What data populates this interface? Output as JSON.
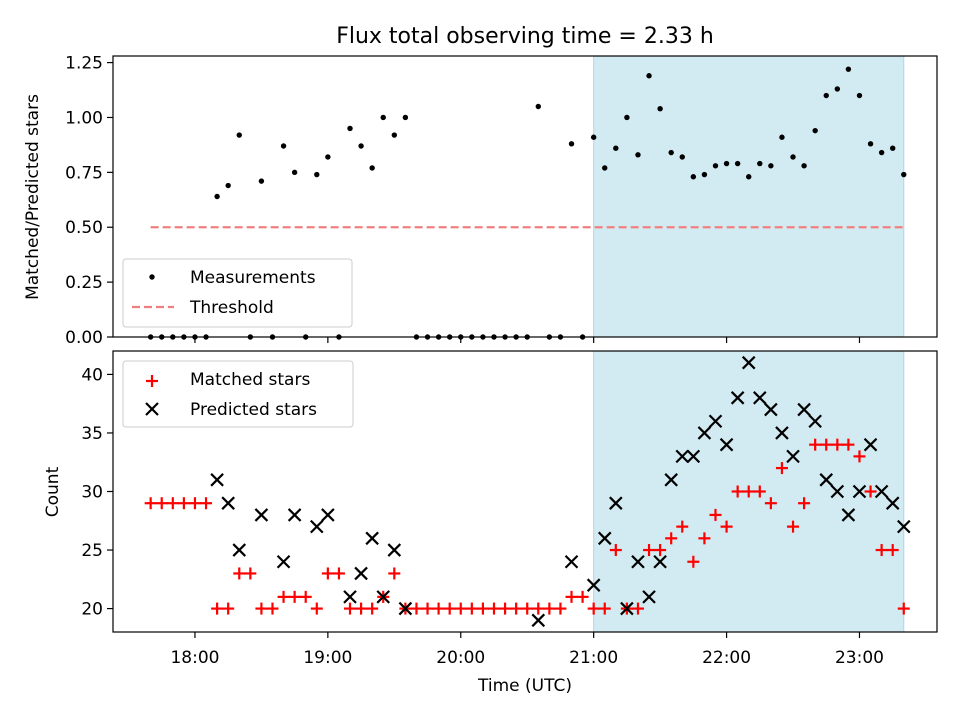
{
  "chart_data": [
    {
      "type": "scatter",
      "title": "Flux total observing time = 2.33 h",
      "xlabel": "",
      "ylabel": "Matched/Predicted stars",
      "ylim": [
        0,
        1.28
      ],
      "yticks": [
        "0.00",
        "0.25",
        "0.50",
        "0.75",
        "1.00",
        "1.25"
      ],
      "shaded_region": {
        "start": "21:00",
        "end": "23:20",
        "color": "#add8e6"
      },
      "legend_position": "lower-left",
      "legend": [
        {
          "label": "Measurements",
          "marker": "dot",
          "color": "#000000"
        },
        {
          "label": "Threshold",
          "marker": "dashed-line",
          "color": "#f08080"
        }
      ],
      "threshold": {
        "y": 0.5,
        "x": [
          "17:40",
          "23:20"
        ]
      },
      "series": [
        {
          "name": "Measurements",
          "points": [
            [
              "17:40",
              0
            ],
            [
              "17:45",
              0
            ],
            [
              "17:50",
              0
            ],
            [
              "17:55",
              0
            ],
            [
              "18:00",
              0
            ],
            [
              "18:05",
              0
            ],
            [
              "18:10",
              0.64
            ],
            [
              "18:15",
              0.69
            ],
            [
              "18:20",
              0.92
            ],
            [
              "18:25",
              0
            ],
            [
              "18:30",
              0.71
            ],
            [
              "18:35",
              0
            ],
            [
              "18:40",
              0.87
            ],
            [
              "18:45",
              0.75
            ],
            [
              "18:50",
              0
            ],
            [
              "18:55",
              0.74
            ],
            [
              "19:00",
              0.82
            ],
            [
              "19:05",
              0
            ],
            [
              "19:10",
              0.95
            ],
            [
              "19:15",
              0.87
            ],
            [
              "19:20",
              0.77
            ],
            [
              "19:25",
              1.0
            ],
            [
              "19:30",
              0.92
            ],
            [
              "19:35",
              1.0
            ],
            [
              "19:40",
              0
            ],
            [
              "19:45",
              0
            ],
            [
              "19:50",
              0
            ],
            [
              "19:55",
              0
            ],
            [
              "20:00",
              0
            ],
            [
              "20:05",
              0
            ],
            [
              "20:10",
              0
            ],
            [
              "20:15",
              0
            ],
            [
              "20:20",
              0
            ],
            [
              "20:25",
              0
            ],
            [
              "20:30",
              0
            ],
            [
              "20:35",
              1.05
            ],
            [
              "20:40",
              0
            ],
            [
              "20:45",
              0
            ],
            [
              "20:50",
              0.88
            ],
            [
              "20:55",
              0
            ],
            [
              "21:00",
              0.91
            ],
            [
              "21:05",
              0.77
            ],
            [
              "21:10",
              0.86
            ],
            [
              "21:15",
              1.0
            ],
            [
              "21:20",
              0.83
            ],
            [
              "21:25",
              1.19
            ],
            [
              "21:30",
              1.04
            ],
            [
              "21:35",
              0.84
            ],
            [
              "21:40",
              0.82
            ],
            [
              "21:45",
              0.73
            ],
            [
              "21:50",
              0.74
            ],
            [
              "21:55",
              0.78
            ],
            [
              "22:00",
              0.79
            ],
            [
              "22:05",
              0.79
            ],
            [
              "22:10",
              0.73
            ],
            [
              "22:15",
              0.79
            ],
            [
              "22:20",
              0.78
            ],
            [
              "22:25",
              0.91
            ],
            [
              "22:30",
              0.82
            ],
            [
              "22:35",
              0.78
            ],
            [
              "22:40",
              0.94
            ],
            [
              "22:45",
              1.1
            ],
            [
              "22:50",
              1.13
            ],
            [
              "22:55",
              1.22
            ],
            [
              "23:00",
              1.1
            ],
            [
              "23:05",
              0.88
            ],
            [
              "23:10",
              0.84
            ],
            [
              "23:15",
              0.86
            ],
            [
              "23:20",
              0.74
            ]
          ]
        }
      ]
    },
    {
      "type": "scatter",
      "title": "",
      "xlabel": "Time (UTC)",
      "ylabel": "Count",
      "ylim": [
        18,
        42
      ],
      "yticks": [
        "20",
        "25",
        "30",
        "35",
        "40"
      ],
      "xlim": [
        "17:23",
        "23:35"
      ],
      "xticks": [
        "18:00",
        "19:00",
        "20:00",
        "21:00",
        "22:00",
        "23:00"
      ],
      "legend_position": "upper-left",
      "legend": [
        {
          "label": "Matched stars",
          "marker": "plus",
          "color": "#ff0000"
        },
        {
          "label": "Predicted stars",
          "marker": "x",
          "color": "#000000"
        }
      ],
      "series": [
        {
          "name": "Matched stars",
          "points": [
            [
              "17:40",
              29
            ],
            [
              "17:45",
              29
            ],
            [
              "17:50",
              29
            ],
            [
              "17:55",
              29
            ],
            [
              "18:00",
              29
            ],
            [
              "18:05",
              29
            ],
            [
              "18:10",
              20
            ],
            [
              "18:15",
              20
            ],
            [
              "18:20",
              23
            ],
            [
              "18:25",
              23
            ],
            [
              "18:30",
              20
            ],
            [
              "18:35",
              20
            ],
            [
              "18:40",
              21
            ],
            [
              "18:45",
              21
            ],
            [
              "18:50",
              21
            ],
            [
              "18:55",
              20
            ],
            [
              "19:00",
              23
            ],
            [
              "19:05",
              23
            ],
            [
              "19:10",
              20
            ],
            [
              "19:15",
              20
            ],
            [
              "19:20",
              20
            ],
            [
              "19:25",
              21
            ],
            [
              "19:30",
              23
            ],
            [
              "19:35",
              20
            ],
            [
              "19:40",
              20
            ],
            [
              "19:45",
              20
            ],
            [
              "19:50",
              20
            ],
            [
              "19:55",
              20
            ],
            [
              "20:00",
              20
            ],
            [
              "20:05",
              20
            ],
            [
              "20:10",
              20
            ],
            [
              "20:15",
              20
            ],
            [
              "20:20",
              20
            ],
            [
              "20:25",
              20
            ],
            [
              "20:30",
              20
            ],
            [
              "20:35",
              20
            ],
            [
              "20:40",
              20
            ],
            [
              "20:45",
              20
            ],
            [
              "20:50",
              21
            ],
            [
              "20:55",
              21
            ],
            [
              "21:00",
              20
            ],
            [
              "21:05",
              20
            ],
            [
              "21:10",
              25
            ],
            [
              "21:15",
              20
            ],
            [
              "21:20",
              20
            ],
            [
              "21:25",
              25
            ],
            [
              "21:30",
              25
            ],
            [
              "21:35",
              26
            ],
            [
              "21:40",
              27
            ],
            [
              "21:45",
              24
            ],
            [
              "21:50",
              26
            ],
            [
              "21:55",
              28
            ],
            [
              "22:00",
              27
            ],
            [
              "22:05",
              30
            ],
            [
              "22:10",
              30
            ],
            [
              "22:15",
              30
            ],
            [
              "22:20",
              29
            ],
            [
              "22:25",
              32
            ],
            [
              "22:30",
              27
            ],
            [
              "22:35",
              29
            ],
            [
              "22:40",
              34
            ],
            [
              "22:45",
              34
            ],
            [
              "22:50",
              34
            ],
            [
              "22:55",
              34
            ],
            [
              "23:00",
              33
            ],
            [
              "23:05",
              30
            ],
            [
              "23:10",
              25
            ],
            [
              "23:15",
              25
            ],
            [
              "23:20",
              20
            ]
          ]
        },
        {
          "name": "Predicted stars",
          "points": [
            [
              "18:10",
              31
            ],
            [
              "18:15",
              29
            ],
            [
              "18:20",
              25
            ],
            [
              "18:30",
              28
            ],
            [
              "18:40",
              24
            ],
            [
              "18:45",
              28
            ],
            [
              "18:55",
              27
            ],
            [
              "19:00",
              28
            ],
            [
              "19:10",
              21
            ],
            [
              "19:15",
              23
            ],
            [
              "19:20",
              26
            ],
            [
              "19:25",
              21
            ],
            [
              "19:30",
              25
            ],
            [
              "19:35",
              20
            ],
            [
              "20:35",
              19
            ],
            [
              "20:50",
              24
            ],
            [
              "21:00",
              22
            ],
            [
              "21:05",
              26
            ],
            [
              "21:10",
              29
            ],
            [
              "21:15",
              20
            ],
            [
              "21:20",
              24
            ],
            [
              "21:25",
              21
            ],
            [
              "21:30",
              24
            ],
            [
              "21:35",
              31
            ],
            [
              "21:40",
              33
            ],
            [
              "21:45",
              33
            ],
            [
              "21:50",
              35
            ],
            [
              "21:55",
              36
            ],
            [
              "22:00",
              34
            ],
            [
              "22:05",
              38
            ],
            [
              "22:10",
              41
            ],
            [
              "22:15",
              38
            ],
            [
              "22:20",
              37
            ],
            [
              "22:25",
              35
            ],
            [
              "22:30",
              33
            ],
            [
              "22:35",
              37
            ],
            [
              "22:40",
              36
            ],
            [
              "22:45",
              31
            ],
            [
              "22:50",
              30
            ],
            [
              "22:55",
              28
            ],
            [
              "23:00",
              30
            ],
            [
              "23:05",
              34
            ],
            [
              "23:10",
              30
            ],
            [
              "23:15",
              29
            ],
            [
              "23:20",
              27
            ]
          ]
        }
      ]
    }
  ]
}
